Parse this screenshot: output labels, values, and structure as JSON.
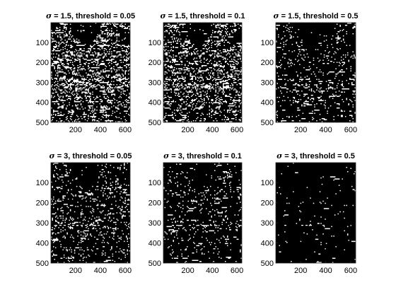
{
  "figure": {
    "background": "#ffffff",
    "image_background": "#000000",
    "edge_color": "#ffffff"
  },
  "chart_data": [
    {
      "type": "heatmap",
      "title_symbol": "σ",
      "title_rest": " = 1.5, threshold = 0.05",
      "xticks": [
        "200",
        "400",
        "600"
      ],
      "yticks": [
        "100",
        "200",
        "300",
        "400",
        "500"
      ],
      "xlim": [
        1,
        640
      ],
      "ylim": [
        500,
        1
      ],
      "edge_density": 0.42
    },
    {
      "type": "heatmap",
      "title_symbol": "σ",
      "title_rest": " = 1.5, threshold = 0.1",
      "xticks": [
        "200",
        "400",
        "600"
      ],
      "yticks": [
        "100",
        "200",
        "300",
        "400",
        "500"
      ],
      "xlim": [
        1,
        640
      ],
      "ylim": [
        500,
        1
      ],
      "edge_density": 0.34
    },
    {
      "type": "heatmap",
      "title_symbol": "σ",
      "title_rest": " = 1.5, threshold = 0.5",
      "xticks": [
        "200",
        "400",
        "600"
      ],
      "yticks": [
        "100",
        "200",
        "300",
        "400",
        "500"
      ],
      "xlim": [
        1,
        640
      ],
      "ylim": [
        500,
        1
      ],
      "edge_density": 0.16
    },
    {
      "type": "heatmap",
      "title_symbol": "σ",
      "title_rest": " = 3, threshold = 0.05",
      "xticks": [
        "200",
        "400",
        "600"
      ],
      "yticks": [
        "100",
        "200",
        "300",
        "400",
        "500"
      ],
      "xlim": [
        1,
        640
      ],
      "ylim": [
        500,
        1
      ],
      "edge_density": 0.2
    },
    {
      "type": "heatmap",
      "title_symbol": "σ",
      "title_rest": " = 3, threshold = 0.1",
      "xticks": [
        "200",
        "400",
        "600"
      ],
      "yticks": [
        "100",
        "200",
        "300",
        "400",
        "500"
      ],
      "xlim": [
        1,
        640
      ],
      "ylim": [
        500,
        1
      ],
      "edge_density": 0.14
    },
    {
      "type": "heatmap",
      "title_symbol": "σ",
      "title_rest": " = 3, threshold = 0.5",
      "xticks": [
        "200",
        "400",
        "600"
      ],
      "yticks": [
        "100",
        "200",
        "300",
        "400",
        "500"
      ],
      "xlim": [
        1,
        640
      ],
      "ylim": [
        500,
        1
      ],
      "edge_density": 0.03
    }
  ]
}
